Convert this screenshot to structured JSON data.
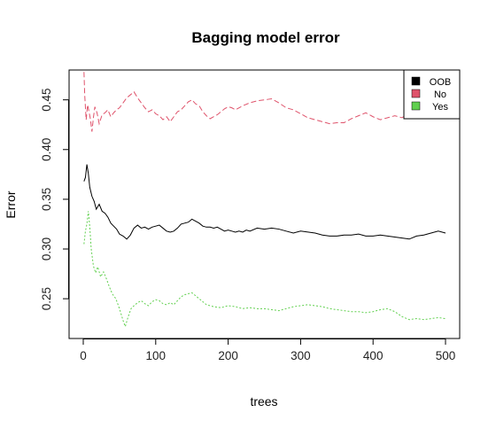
{
  "chart_data": {
    "type": "line",
    "title": "Bagging model error",
    "xlabel": "trees",
    "ylabel": "Error",
    "xlim": [
      0,
      500
    ],
    "ylim": [
      0.21,
      0.48
    ],
    "xticks": [
      0,
      100,
      200,
      300,
      400,
      500
    ],
    "yticks": [
      0.25,
      0.3,
      0.35,
      0.4,
      0.45
    ],
    "grid": false,
    "legend_position": "top-right",
    "series": [
      {
        "name": "OOB",
        "color": "#000000",
        "dash": "solid",
        "points": [
          [
            1,
            0.368
          ],
          [
            3,
            0.372
          ],
          [
            5,
            0.385
          ],
          [
            7,
            0.376
          ],
          [
            9,
            0.362
          ],
          [
            12,
            0.353
          ],
          [
            15,
            0.348
          ],
          [
            18,
            0.34
          ],
          [
            22,
            0.345
          ],
          [
            26,
            0.338
          ],
          [
            30,
            0.336
          ],
          [
            34,
            0.332
          ],
          [
            38,
            0.326
          ],
          [
            42,
            0.323
          ],
          [
            46,
            0.32
          ],
          [
            50,
            0.315
          ],
          [
            55,
            0.313
          ],
          [
            60,
            0.31
          ],
          [
            65,
            0.314
          ],
          [
            70,
            0.321
          ],
          [
            75,
            0.324
          ],
          [
            80,
            0.321
          ],
          [
            85,
            0.322
          ],
          [
            90,
            0.32
          ],
          [
            95,
            0.322
          ],
          [
            100,
            0.323
          ],
          [
            105,
            0.324
          ],
          [
            110,
            0.321
          ],
          [
            115,
            0.318
          ],
          [
            120,
            0.317
          ],
          [
            125,
            0.318
          ],
          [
            130,
            0.321
          ],
          [
            135,
            0.325
          ],
          [
            140,
            0.326
          ],
          [
            145,
            0.327
          ],
          [
            150,
            0.33
          ],
          [
            155,
            0.328
          ],
          [
            160,
            0.326
          ],
          [
            165,
            0.323
          ],
          [
            170,
            0.322
          ],
          [
            175,
            0.322
          ],
          [
            180,
            0.321
          ],
          [
            185,
            0.322
          ],
          [
            190,
            0.32
          ],
          [
            195,
            0.318
          ],
          [
            200,
            0.319
          ],
          [
            205,
            0.318
          ],
          [
            210,
            0.317
          ],
          [
            215,
            0.318
          ],
          [
            220,
            0.317
          ],
          [
            225,
            0.319
          ],
          [
            230,
            0.318
          ],
          [
            240,
            0.321
          ],
          [
            250,
            0.32
          ],
          [
            260,
            0.321
          ],
          [
            270,
            0.32
          ],
          [
            280,
            0.318
          ],
          [
            290,
            0.316
          ],
          [
            300,
            0.318
          ],
          [
            310,
            0.317
          ],
          [
            320,
            0.316
          ],
          [
            330,
            0.314
          ],
          [
            340,
            0.313
          ],
          [
            350,
            0.313
          ],
          [
            360,
            0.314
          ],
          [
            370,
            0.314
          ],
          [
            380,
            0.315
          ],
          [
            390,
            0.313
          ],
          [
            400,
            0.313
          ],
          [
            410,
            0.314
          ],
          [
            420,
            0.313
          ],
          [
            430,
            0.312
          ],
          [
            440,
            0.311
          ],
          [
            450,
            0.31
          ],
          [
            460,
            0.313
          ],
          [
            470,
            0.314
          ],
          [
            480,
            0.316
          ],
          [
            490,
            0.318
          ],
          [
            500,
            0.316
          ]
        ]
      },
      {
        "name": "No",
        "color": "#DF536B",
        "dash": "6,3",
        "points": [
          [
            1,
            0.478
          ],
          [
            2,
            0.455
          ],
          [
            4,
            0.43
          ],
          [
            6,
            0.445
          ],
          [
            8,
            0.438
          ],
          [
            10,
            0.43
          ],
          [
            12,
            0.418
          ],
          [
            14,
            0.432
          ],
          [
            16,
            0.443
          ],
          [
            19,
            0.437
          ],
          [
            22,
            0.426
          ],
          [
            26,
            0.435
          ],
          [
            30,
            0.437
          ],
          [
            34,
            0.44
          ],
          [
            38,
            0.433
          ],
          [
            42,
            0.437
          ],
          [
            46,
            0.44
          ],
          [
            50,
            0.442
          ],
          [
            55,
            0.447
          ],
          [
            60,
            0.452
          ],
          [
            65,
            0.455
          ],
          [
            70,
            0.458
          ],
          [
            75,
            0.452
          ],
          [
            80,
            0.447
          ],
          [
            85,
            0.442
          ],
          [
            90,
            0.438
          ],
          [
            95,
            0.44
          ],
          [
            100,
            0.436
          ],
          [
            105,
            0.434
          ],
          [
            110,
            0.43
          ],
          [
            115,
            0.433
          ],
          [
            120,
            0.428
          ],
          [
            125,
            0.433
          ],
          [
            130,
            0.438
          ],
          [
            135,
            0.44
          ],
          [
            140,
            0.444
          ],
          [
            145,
            0.448
          ],
          [
            150,
            0.45
          ],
          [
            155,
            0.446
          ],
          [
            160,
            0.444
          ],
          [
            165,
            0.438
          ],
          [
            170,
            0.434
          ],
          [
            175,
            0.431
          ],
          [
            180,
            0.433
          ],
          [
            185,
            0.435
          ],
          [
            190,
            0.438
          ],
          [
            195,
            0.441
          ],
          [
            200,
            0.443
          ],
          [
            205,
            0.442
          ],
          [
            210,
            0.44
          ],
          [
            220,
            0.444
          ],
          [
            230,
            0.447
          ],
          [
            240,
            0.449
          ],
          [
            250,
            0.45
          ],
          [
            260,
            0.451
          ],
          [
            270,
            0.447
          ],
          [
            280,
            0.442
          ],
          [
            290,
            0.44
          ],
          [
            300,
            0.436
          ],
          [
            310,
            0.432
          ],
          [
            320,
            0.43
          ],
          [
            330,
            0.428
          ],
          [
            340,
            0.426
          ],
          [
            350,
            0.427
          ],
          [
            360,
            0.427
          ],
          [
            370,
            0.431
          ],
          [
            380,
            0.434
          ],
          [
            390,
            0.437
          ],
          [
            400,
            0.433
          ],
          [
            410,
            0.43
          ],
          [
            420,
            0.432
          ],
          [
            430,
            0.434
          ],
          [
            440,
            0.432
          ],
          [
            450,
            0.437
          ],
          [
            460,
            0.442
          ],
          [
            470,
            0.445
          ],
          [
            480,
            0.443
          ],
          [
            490,
            0.441
          ],
          [
            500,
            0.44
          ]
        ]
      },
      {
        "name": "Yes",
        "color": "#61D04F",
        "dash": "2,2",
        "points": [
          [
            1,
            0.305
          ],
          [
            3,
            0.318
          ],
          [
            5,
            0.325
          ],
          [
            7,
            0.338
          ],
          [
            9,
            0.322
          ],
          [
            11,
            0.3
          ],
          [
            14,
            0.283
          ],
          [
            17,
            0.276
          ],
          [
            20,
            0.282
          ],
          [
            24,
            0.272
          ],
          [
            28,
            0.277
          ],
          [
            32,
            0.27
          ],
          [
            36,
            0.262
          ],
          [
            40,
            0.255
          ],
          [
            45,
            0.25
          ],
          [
            50,
            0.24
          ],
          [
            55,
            0.228
          ],
          [
            58,
            0.222
          ],
          [
            62,
            0.232
          ],
          [
            66,
            0.24
          ],
          [
            70,
            0.243
          ],
          [
            75,
            0.246
          ],
          [
            80,
            0.248
          ],
          [
            85,
            0.245
          ],
          [
            90,
            0.243
          ],
          [
            95,
            0.247
          ],
          [
            100,
            0.249
          ],
          [
            105,
            0.248
          ],
          [
            110,
            0.245
          ],
          [
            115,
            0.244
          ],
          [
            120,
            0.246
          ],
          [
            125,
            0.244
          ],
          [
            130,
            0.248
          ],
          [
            135,
            0.252
          ],
          [
            140,
            0.254
          ],
          [
            145,
            0.255
          ],
          [
            150,
            0.256
          ],
          [
            155,
            0.253
          ],
          [
            160,
            0.25
          ],
          [
            165,
            0.247
          ],
          [
            170,
            0.244
          ],
          [
            175,
            0.243
          ],
          [
            180,
            0.242
          ],
          [
            190,
            0.241
          ],
          [
            200,
            0.243
          ],
          [
            210,
            0.242
          ],
          [
            220,
            0.24
          ],
          [
            230,
            0.241
          ],
          [
            240,
            0.24
          ],
          [
            250,
            0.24
          ],
          [
            260,
            0.239
          ],
          [
            270,
            0.238
          ],
          [
            280,
            0.24
          ],
          [
            290,
            0.242
          ],
          [
            300,
            0.243
          ],
          [
            310,
            0.244
          ],
          [
            320,
            0.243
          ],
          [
            330,
            0.242
          ],
          [
            340,
            0.24
          ],
          [
            350,
            0.239
          ],
          [
            360,
            0.238
          ],
          [
            370,
            0.237
          ],
          [
            380,
            0.237
          ],
          [
            390,
            0.236
          ],
          [
            400,
            0.237
          ],
          [
            410,
            0.239
          ],
          [
            420,
            0.24
          ],
          [
            430,
            0.237
          ],
          [
            440,
            0.232
          ],
          [
            450,
            0.229
          ],
          [
            460,
            0.23
          ],
          [
            470,
            0.229
          ],
          [
            480,
            0.23
          ],
          [
            490,
            0.231
          ],
          [
            500,
            0.23
          ]
        ]
      }
    ]
  }
}
